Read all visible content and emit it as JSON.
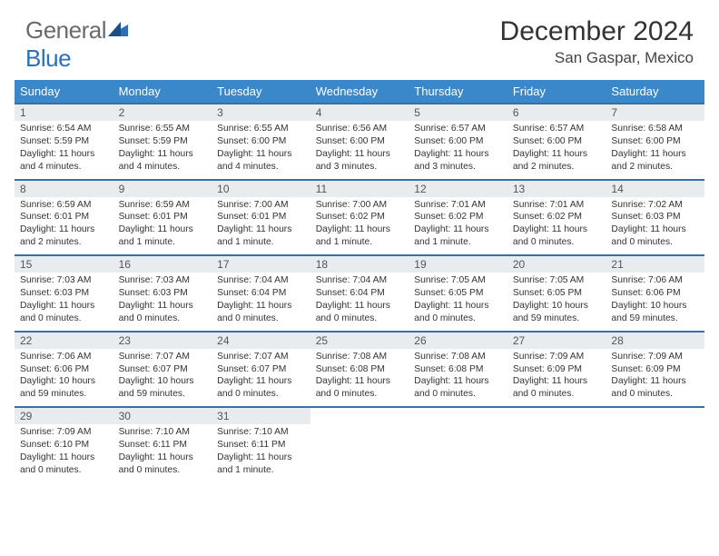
{
  "brand": {
    "general": "General",
    "blue": "Blue"
  },
  "title": "December 2024",
  "location": "San Gaspar, Mexico",
  "header_bg": "#3a87c9",
  "week_border": "#3a6ea5",
  "daynum_bg": "#e8ecef",
  "dayNames": [
    "Sunday",
    "Monday",
    "Tuesday",
    "Wednesday",
    "Thursday",
    "Friday",
    "Saturday"
  ],
  "labels": {
    "sunrise": "Sunrise:",
    "sunset": "Sunset:",
    "daylight": "Daylight:"
  },
  "days": [
    {
      "n": "1",
      "sr": "6:54 AM",
      "ss": "5:59 PM",
      "dl": "11 hours and 4 minutes."
    },
    {
      "n": "2",
      "sr": "6:55 AM",
      "ss": "5:59 PM",
      "dl": "11 hours and 4 minutes."
    },
    {
      "n": "3",
      "sr": "6:55 AM",
      "ss": "6:00 PM",
      "dl": "11 hours and 4 minutes."
    },
    {
      "n": "4",
      "sr": "6:56 AM",
      "ss": "6:00 PM",
      "dl": "11 hours and 3 minutes."
    },
    {
      "n": "5",
      "sr": "6:57 AM",
      "ss": "6:00 PM",
      "dl": "11 hours and 3 minutes."
    },
    {
      "n": "6",
      "sr": "6:57 AM",
      "ss": "6:00 PM",
      "dl": "11 hours and 2 minutes."
    },
    {
      "n": "7",
      "sr": "6:58 AM",
      "ss": "6:00 PM",
      "dl": "11 hours and 2 minutes."
    },
    {
      "n": "8",
      "sr": "6:59 AM",
      "ss": "6:01 PM",
      "dl": "11 hours and 2 minutes."
    },
    {
      "n": "9",
      "sr": "6:59 AM",
      "ss": "6:01 PM",
      "dl": "11 hours and 1 minute."
    },
    {
      "n": "10",
      "sr": "7:00 AM",
      "ss": "6:01 PM",
      "dl": "11 hours and 1 minute."
    },
    {
      "n": "11",
      "sr": "7:00 AM",
      "ss": "6:02 PM",
      "dl": "11 hours and 1 minute."
    },
    {
      "n": "12",
      "sr": "7:01 AM",
      "ss": "6:02 PM",
      "dl": "11 hours and 1 minute."
    },
    {
      "n": "13",
      "sr": "7:01 AM",
      "ss": "6:02 PM",
      "dl": "11 hours and 0 minutes."
    },
    {
      "n": "14",
      "sr": "7:02 AM",
      "ss": "6:03 PM",
      "dl": "11 hours and 0 minutes."
    },
    {
      "n": "15",
      "sr": "7:03 AM",
      "ss": "6:03 PM",
      "dl": "11 hours and 0 minutes."
    },
    {
      "n": "16",
      "sr": "7:03 AM",
      "ss": "6:03 PM",
      "dl": "11 hours and 0 minutes."
    },
    {
      "n": "17",
      "sr": "7:04 AM",
      "ss": "6:04 PM",
      "dl": "11 hours and 0 minutes."
    },
    {
      "n": "18",
      "sr": "7:04 AM",
      "ss": "6:04 PM",
      "dl": "11 hours and 0 minutes."
    },
    {
      "n": "19",
      "sr": "7:05 AM",
      "ss": "6:05 PM",
      "dl": "11 hours and 0 minutes."
    },
    {
      "n": "20",
      "sr": "7:05 AM",
      "ss": "6:05 PM",
      "dl": "10 hours and 59 minutes."
    },
    {
      "n": "21",
      "sr": "7:06 AM",
      "ss": "6:06 PM",
      "dl": "10 hours and 59 minutes."
    },
    {
      "n": "22",
      "sr": "7:06 AM",
      "ss": "6:06 PM",
      "dl": "10 hours and 59 minutes."
    },
    {
      "n": "23",
      "sr": "7:07 AM",
      "ss": "6:07 PM",
      "dl": "10 hours and 59 minutes."
    },
    {
      "n": "24",
      "sr": "7:07 AM",
      "ss": "6:07 PM",
      "dl": "11 hours and 0 minutes."
    },
    {
      "n": "25",
      "sr": "7:08 AM",
      "ss": "6:08 PM",
      "dl": "11 hours and 0 minutes."
    },
    {
      "n": "26",
      "sr": "7:08 AM",
      "ss": "6:08 PM",
      "dl": "11 hours and 0 minutes."
    },
    {
      "n": "27",
      "sr": "7:09 AM",
      "ss": "6:09 PM",
      "dl": "11 hours and 0 minutes."
    },
    {
      "n": "28",
      "sr": "7:09 AM",
      "ss": "6:09 PM",
      "dl": "11 hours and 0 minutes."
    },
    {
      "n": "29",
      "sr": "7:09 AM",
      "ss": "6:10 PM",
      "dl": "11 hours and 0 minutes."
    },
    {
      "n": "30",
      "sr": "7:10 AM",
      "ss": "6:11 PM",
      "dl": "11 hours and 0 minutes."
    },
    {
      "n": "31",
      "sr": "7:10 AM",
      "ss": "6:11 PM",
      "dl": "11 hours and 1 minute."
    }
  ]
}
